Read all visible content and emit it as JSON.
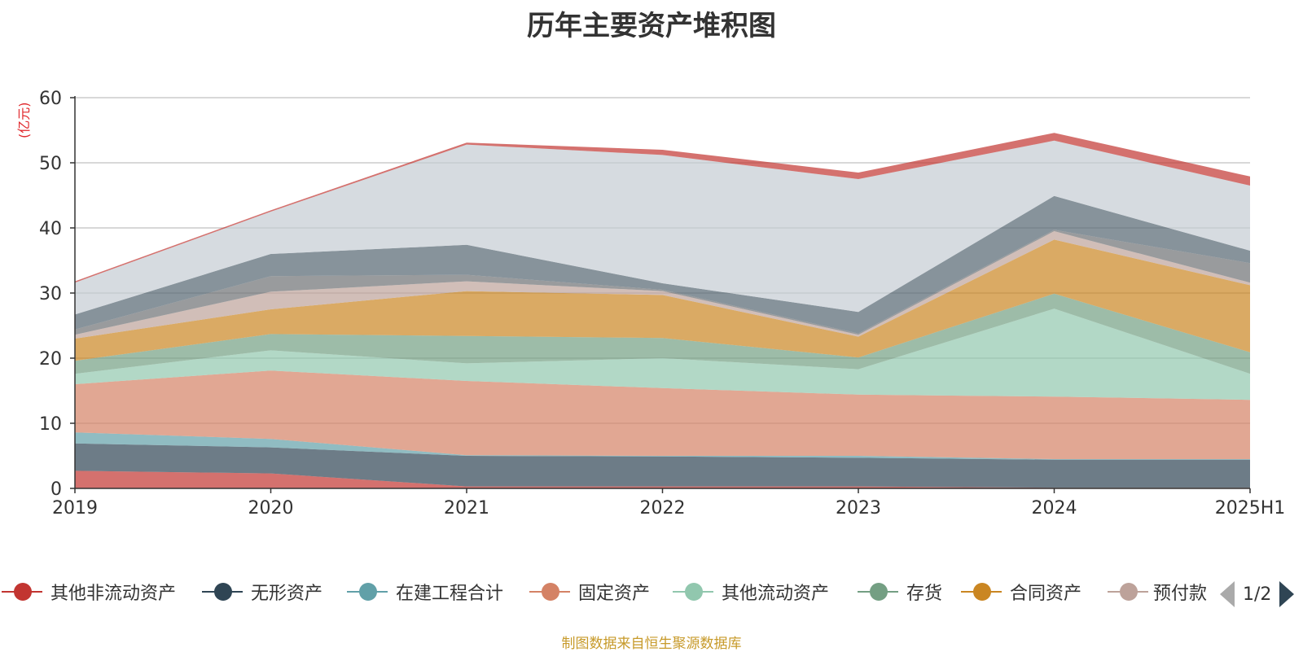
{
  "title": "历年主要资产堆积图",
  "unit_label": "(亿元)",
  "footer": "制图数据来自恒生聚源数据库",
  "legend": {
    "items": [
      {
        "name": "其他非流动资产",
        "color": "#c23531"
      },
      {
        "name": "无形资产",
        "color": "#2f4554"
      },
      {
        "name": "在建工程合计",
        "color": "#61a0a8"
      },
      {
        "name": "固定资产",
        "color": "#d48265"
      },
      {
        "name": "其他流动资产",
        "color": "#91c7ae"
      },
      {
        "name": "存货",
        "color": "#749f83"
      },
      {
        "name": "合同资产",
        "color": "#ca8622"
      },
      {
        "name": "预付款",
        "color": "#bda29a"
      }
    ],
    "page": "1/2"
  },
  "chart_data": {
    "type": "area",
    "stacked": true,
    "title": "历年主要资产堆积图",
    "ylabel": "(亿元)",
    "x": [
      "2019",
      "2020",
      "2021",
      "2022",
      "2023",
      "2024",
      "2025H1"
    ],
    "ylim": [
      0,
      60
    ],
    "yticks": [
      0,
      10,
      20,
      30,
      40,
      50,
      60
    ],
    "grid": true,
    "legend_position": "bottom",
    "series": [
      {
        "name": "其他非流动资产",
        "color": "#c23531",
        "values": [
          2.7,
          2.3,
          0.3,
          0.3,
          0.3,
          0.1,
          0.1
        ]
      },
      {
        "name": "无形资产",
        "color": "#2f4554",
        "values": [
          4.2,
          4.0,
          4.7,
          4.6,
          4.4,
          4.3,
          4.3
        ]
      },
      {
        "name": "在建工程合计",
        "color": "#61a0a8",
        "values": [
          1.7,
          1.3,
          0.1,
          0.1,
          0.3,
          0.1,
          0.1
        ]
      },
      {
        "name": "固定资产",
        "color": "#d48265",
        "values": [
          7.4,
          10.5,
          11.4,
          10.4,
          9.4,
          9.6,
          9.1
        ]
      },
      {
        "name": "其他流动资产",
        "color": "#91c7ae",
        "values": [
          1.6,
          3.1,
          2.7,
          4.6,
          3.9,
          13.5,
          4.0
        ]
      },
      {
        "name": "存货",
        "color": "#749f83",
        "values": [
          2.0,
          2.5,
          4.2,
          3.1,
          1.8,
          2.3,
          3.3
        ]
      },
      {
        "name": "合同资产",
        "color": "#ca8622",
        "values": [
          3.4,
          3.8,
          6.9,
          6.6,
          3.2,
          8.3,
          10.3
        ]
      },
      {
        "name": "预付款",
        "color": "#bda29a",
        "values": [
          0.6,
          2.7,
          1.5,
          0.6,
          0.3,
          1.3,
          0.4
        ]
      },
      {
        "name": "",
        "color": "#6e7074",
        "values": [
          0.8,
          2.4,
          1.0,
          0.2,
          0.2,
          0.2,
          3.0
        ]
      },
      {
        "name": "",
        "color": "#546570",
        "values": [
          2.3,
          3.4,
          4.6,
          1.0,
          3.3,
          5.2,
          1.9
        ]
      },
      {
        "name": "",
        "color": "#c4ccd3",
        "values": [
          4.9,
          6.5,
          15.4,
          19.7,
          20.4,
          8.5,
          10.0
        ]
      },
      {
        "name": "",
        "color": "#c23531",
        "values": [
          0.2,
          0.2,
          0.3,
          0.8,
          1.0,
          1.2,
          1.4
        ]
      }
    ]
  }
}
